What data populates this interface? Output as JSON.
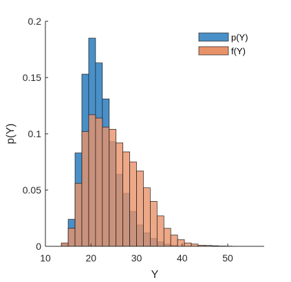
{
  "chart_data": {
    "type": "bar",
    "subtype": "overlaid-histogram",
    "title": "",
    "xlabel": "Y",
    "ylabel": "p(Y)",
    "xlim": [
      10,
      58
    ],
    "ylim": [
      0,
      0.2
    ],
    "xticks": [
      10,
      20,
      30,
      40,
      50
    ],
    "yticks": [
      0,
      0.05,
      0.1,
      0.15,
      0.2
    ],
    "ytick_labels": [
      "0",
      "0.05",
      "0.1",
      "0.15",
      "0.2"
    ],
    "grid": false,
    "legend_position": "top-right",
    "bin_width": 1.5,
    "series": [
      {
        "name": "p(Y)",
        "color": "#4a90c8",
        "opacity": 1,
        "bins": [
          {
            "x0": 13.5,
            "value": 0.002
          },
          {
            "x0": 15.0,
            "value": 0.024
          },
          {
            "x0": 16.5,
            "value": 0.083
          },
          {
            "x0": 18.0,
            "value": 0.153
          },
          {
            "x0": 19.5,
            "value": 0.185
          },
          {
            "x0": 21.0,
            "value": 0.163
          },
          {
            "x0": 22.5,
            "value": 0.131
          },
          {
            "x0": 24.0,
            "value": 0.093
          },
          {
            "x0": 25.5,
            "value": 0.064
          },
          {
            "x0": 27.0,
            "value": 0.047
          },
          {
            "x0": 28.5,
            "value": 0.031
          },
          {
            "x0": 30.0,
            "value": 0.019
          },
          {
            "x0": 31.5,
            "value": 0.012
          },
          {
            "x0": 33.0,
            "value": 0.007
          },
          {
            "x0": 34.5,
            "value": 0.004
          },
          {
            "x0": 36.0,
            "value": 0.002
          },
          {
            "x0": 37.5,
            "value": 0.001
          }
        ]
      },
      {
        "name": "f(Y)",
        "color": "#e8926a",
        "opacity": 0.8,
        "bins": [
          {
            "x0": 13.5,
            "value": 0.003
          },
          {
            "x0": 15.0,
            "value": 0.016
          },
          {
            "x0": 16.5,
            "value": 0.056
          },
          {
            "x0": 18.0,
            "value": 0.102
          },
          {
            "x0": 19.5,
            "value": 0.117
          },
          {
            "x0": 21.0,
            "value": 0.114
          },
          {
            "x0": 22.5,
            "value": 0.106
          },
          {
            "x0": 24.0,
            "value": 0.104
          },
          {
            "x0": 25.5,
            "value": 0.092
          },
          {
            "x0": 27.0,
            "value": 0.084
          },
          {
            "x0": 28.5,
            "value": 0.075
          },
          {
            "x0": 30.0,
            "value": 0.067
          },
          {
            "x0": 31.5,
            "value": 0.052
          },
          {
            "x0": 33.0,
            "value": 0.04
          },
          {
            "x0": 34.5,
            "value": 0.027
          },
          {
            "x0": 36.0,
            "value": 0.016
          },
          {
            "x0": 37.5,
            "value": 0.01
          },
          {
            "x0": 39.0,
            "value": 0.006
          },
          {
            "x0": 40.5,
            "value": 0.003
          },
          {
            "x0": 42.0,
            "value": 0.002
          },
          {
            "x0": 43.5,
            "value": 0.001
          },
          {
            "x0": 45.0,
            "value": 0.0008
          },
          {
            "x0": 46.5,
            "value": 0.0005
          },
          {
            "x0": 48.0,
            "value": 0.0003
          },
          {
            "x0": 49.5,
            "value": 0.0002
          },
          {
            "x0": 51.0,
            "value": 0.0001
          }
        ]
      }
    ]
  }
}
